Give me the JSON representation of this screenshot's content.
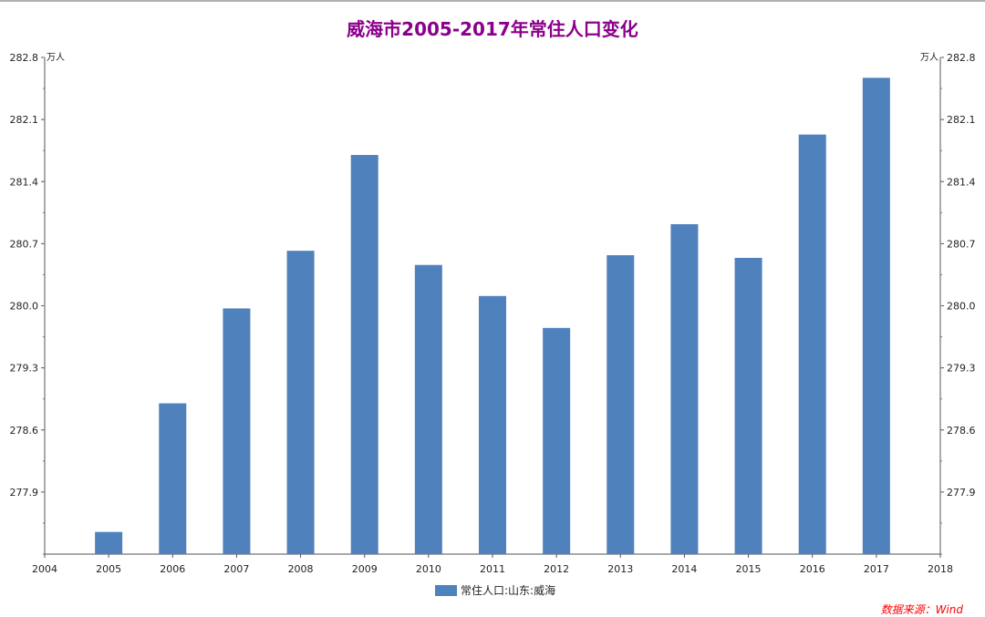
{
  "colors": {
    "bar": "#4f81bd",
    "title": "#8b008b",
    "source": "#ff0000"
  },
  "chart_data": {
    "type": "bar",
    "title": "威海市2005-2017年常住人口变化",
    "y_unit": "万人",
    "x_ticks": [
      "2004",
      "2005",
      "2006",
      "2007",
      "2008",
      "2009",
      "2010",
      "2011",
      "2012",
      "2013",
      "2014",
      "2015",
      "2016",
      "2017",
      "2018"
    ],
    "categories": [
      "2005",
      "2006",
      "2007",
      "2008",
      "2009",
      "2010",
      "2011",
      "2012",
      "2013",
      "2014",
      "2015",
      "2016",
      "2017"
    ],
    "series": [
      {
        "name": "常住人口:山东:威海",
        "values": [
          277.45,
          278.9,
          279.97,
          280.62,
          281.7,
          280.46,
          280.11,
          279.75,
          280.57,
          280.92,
          280.54,
          281.93,
          282.57
        ]
      }
    ],
    "y_ticks": [
      "277.9",
      "278.6",
      "279.3",
      "280.0",
      "280.7",
      "281.4",
      "282.1",
      "282.8"
    ],
    "ylim": [
      277.2,
      282.8
    ],
    "xlim": [
      2004,
      2018
    ],
    "secondary_y_axis": true,
    "grid": false,
    "legend_position": "bottom-center"
  },
  "source": "数据来源：Wind"
}
